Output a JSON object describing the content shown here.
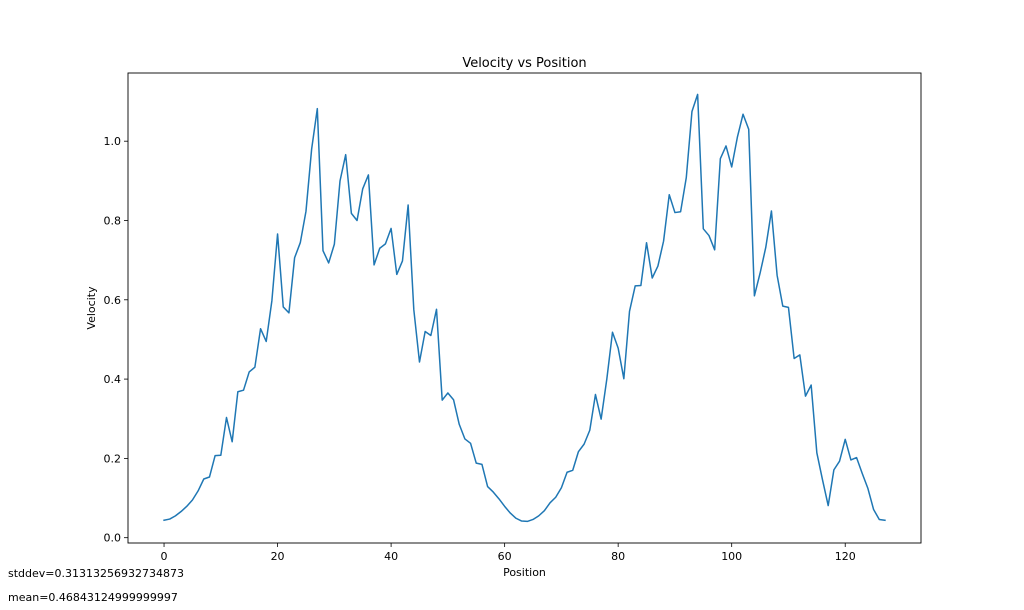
{
  "chart_data": {
    "type": "line",
    "title": "Velocity vs Position",
    "xlabel": "Position",
    "ylabel": "Velocity",
    "xlim": [
      -6.35,
      133.35
    ],
    "ylim": [
      -0.0134,
      1.172
    ],
    "xticks": [
      0,
      20,
      40,
      60,
      80,
      100,
      120
    ],
    "yticks": [
      0.0,
      0.2,
      0.4,
      0.6,
      0.8,
      1.0
    ],
    "xtick_labels": [
      "0",
      "20",
      "40",
      "60",
      "80",
      "100",
      "120"
    ],
    "ytick_labels": [
      "0.0",
      "0.2",
      "0.4",
      "0.6",
      "0.8",
      "1.0"
    ],
    "grid": false,
    "line_color": "#1f77b4",
    "series": [
      {
        "x": [
          0,
          1,
          2,
          3,
          4,
          5,
          6,
          7,
          8,
          9,
          10,
          11,
          12,
          13,
          14,
          15,
          16,
          17,
          18,
          19,
          20,
          21,
          22,
          23,
          24,
          25,
          26,
          27,
          28,
          29,
          30,
          31,
          32,
          33,
          34,
          35,
          36,
          37,
          38,
          39,
          40,
          41,
          42,
          43,
          44,
          45,
          46,
          47,
          48,
          49,
          50,
          51,
          52,
          53,
          54,
          55,
          56,
          57,
          58,
          59,
          60,
          61,
          62,
          63,
          64,
          65,
          66,
          67,
          68,
          69,
          70,
          71,
          72,
          73,
          74,
          75,
          76,
          77,
          78,
          79,
          80,
          81,
          82,
          83,
          84,
          85,
          86,
          87,
          88,
          89,
          90,
          91,
          92,
          93,
          94,
          95,
          96,
          97,
          98,
          99,
          100,
          101,
          102,
          103,
          104,
          105,
          106,
          107,
          108,
          109,
          110,
          111,
          112,
          113,
          114,
          115,
          116,
          117,
          118,
          119,
          120,
          121,
          122,
          123,
          124,
          125,
          126,
          127
        ],
        "values": [
          0.044,
          0.047,
          0.055,
          0.066,
          0.079,
          0.095,
          0.118,
          0.148,
          0.153,
          0.207,
          0.208,
          0.303,
          0.242,
          0.368,
          0.372,
          0.418,
          0.43,
          0.527,
          0.495,
          0.598,
          0.766,
          0.582,
          0.567,
          0.706,
          0.744,
          0.823,
          0.98,
          1.082,
          0.724,
          0.693,
          0.74,
          0.9,
          0.966,
          0.818,
          0.8,
          0.88,
          0.915,
          0.688,
          0.73,
          0.741,
          0.78,
          0.664,
          0.698,
          0.839,
          0.575,
          0.443,
          0.52,
          0.51,
          0.576,
          0.347,
          0.365,
          0.348,
          0.286,
          0.249,
          0.238,
          0.188,
          0.185,
          0.129,
          0.115,
          0.098,
          0.079,
          0.062,
          0.049,
          0.042,
          0.041,
          0.046,
          0.055,
          0.068,
          0.088,
          0.102,
          0.126,
          0.165,
          0.17,
          0.217,
          0.236,
          0.271,
          0.361,
          0.299,
          0.4,
          0.518,
          0.478,
          0.401,
          0.571,
          0.635,
          0.636,
          0.744,
          0.655,
          0.685,
          0.748,
          0.865,
          0.82,
          0.822,
          0.908,
          1.075,
          1.118,
          0.779,
          0.762,
          0.726,
          0.956,
          0.988,
          0.935,
          1.01,
          1.068,
          1.03,
          0.61,
          0.667,
          0.732,
          0.824,
          0.662,
          0.584,
          0.581,
          0.452,
          0.461,
          0.357,
          0.385,
          0.214,
          0.146,
          0.081,
          0.171,
          0.193,
          0.248,
          0.196,
          0.202,
          0.162,
          0.124,
          0.071,
          0.046,
          0.044
        ]
      }
    ]
  },
  "stats": {
    "stddev": "stddev=0.31313256932734873",
    "mean": "mean=0.46843124999999997"
  }
}
